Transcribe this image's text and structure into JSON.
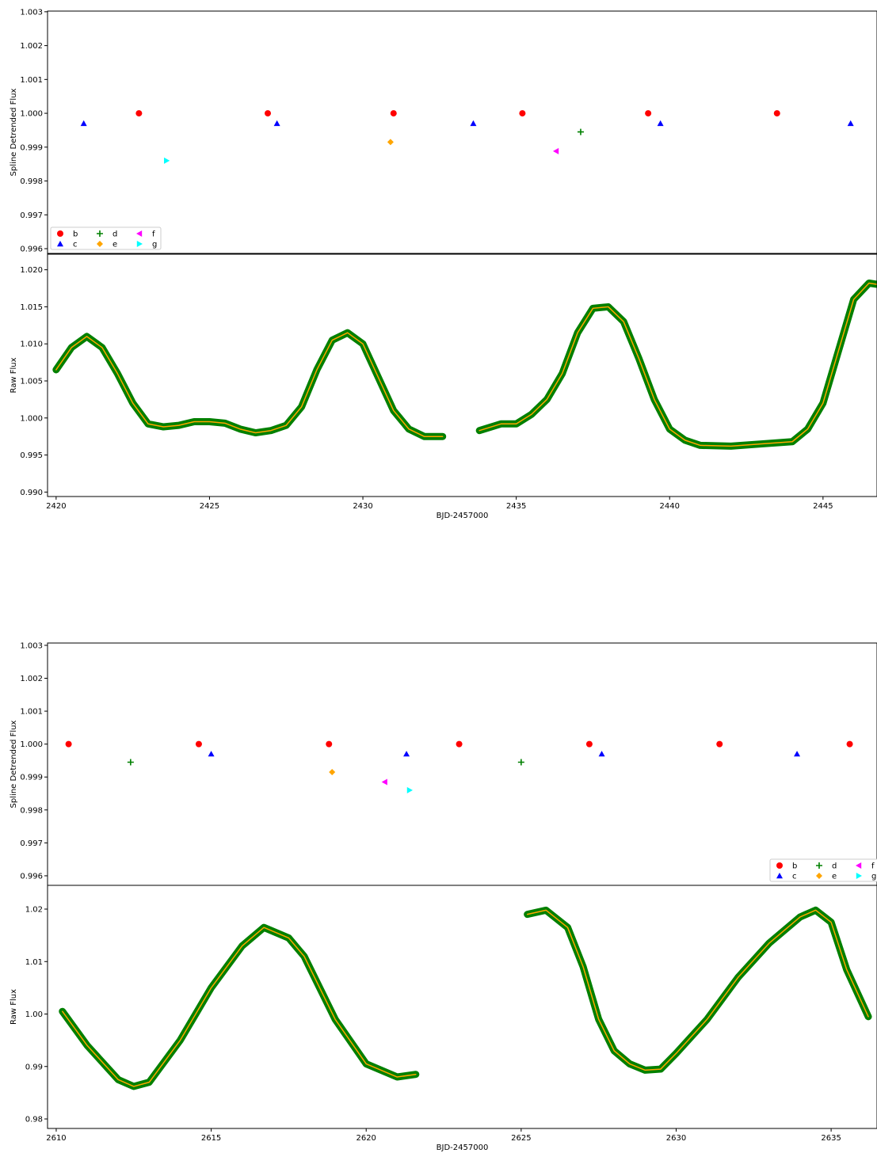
{
  "chart_data": [
    {
      "type": "scatter",
      "ylabel": "Spline Detrended Flux",
      "xlim": [
        2419.72,
        2446.76
      ],
      "ylim": [
        0.99586,
        1.00302
      ],
      "yticks": [
        {
          "value": 0.996,
          "label": "0.996"
        },
        {
          "value": 0.997,
          "label": "0.997"
        },
        {
          "value": 0.998,
          "label": "0.998"
        },
        {
          "value": 0.999,
          "label": "0.999"
        },
        {
          "value": 1.0,
          "label": "1.000"
        },
        {
          "value": 1.001,
          "label": "1.001"
        },
        {
          "value": 1.002,
          "label": "1.002"
        },
        {
          "value": 1.003,
          "label": "1.003"
        }
      ],
      "legend": "lower left",
      "series": [
        {
          "name": "b",
          "color": "#ff0000",
          "marker": "circle",
          "x": [
            2422.7,
            2426.9,
            2431.0,
            2435.2,
            2439.3,
            2443.5
          ],
          "values": [
            1.0,
            1.0,
            1.0,
            1.0,
            1.0,
            1.0
          ]
        },
        {
          "name": "c",
          "color": "#0000ff",
          "marker": "triangle-up",
          "x": [
            2420.9,
            2427.2,
            2433.6,
            2439.7,
            2445.9
          ],
          "values": [
            0.9997,
            0.9997,
            0.9997,
            0.9997,
            0.9997
          ]
        },
        {
          "name": "d",
          "color": "#008000",
          "marker": "plus",
          "x": [
            2437.1
          ],
          "values": [
            0.99945
          ]
        },
        {
          "name": "e",
          "color": "#ffa500",
          "marker": "diamond",
          "x": [
            2430.9
          ],
          "values": [
            0.99915
          ]
        },
        {
          "name": "f",
          "color": "#ff00ff",
          "marker": "triangle-left",
          "x": [
            2436.3
          ],
          "values": [
            0.99888
          ]
        },
        {
          "name": "g",
          "color": "#00ffff",
          "marker": "triangle-right",
          "x": [
            2423.6
          ],
          "values": [
            0.9986
          ]
        }
      ]
    },
    {
      "type": "line",
      "ylabel": "Raw Flux",
      "xlabel": "BJD-2457000",
      "xlim": [
        2419.72,
        2446.76
      ],
      "ylim": [
        0.9894,
        1.0221
      ],
      "xticks": [
        2420,
        2425,
        2430,
        2435,
        2440,
        2445
      ],
      "yticks": [
        {
          "value": 0.99,
          "label": "0.990"
        },
        {
          "value": 0.995,
          "label": "0.995"
        },
        {
          "value": 1.0,
          "label": "1.000"
        },
        {
          "value": 1.005,
          "label": "1.005"
        },
        {
          "value": 1.01,
          "label": "1.010"
        },
        {
          "value": 1.015,
          "label": "1.015"
        },
        {
          "value": 1.02,
          "label": "1.020"
        }
      ],
      "band_color": "#008000",
      "color": "#ffa500",
      "x": [
        2420.0,
        2420.5,
        2421.0,
        2421.5,
        2422.0,
        2422.5,
        2423.0,
        2423.5,
        2424.0,
        2424.5,
        2425.0,
        2425.5,
        2426.0,
        2426.5,
        2427.0,
        2427.5,
        2428.0,
        2428.5,
        2429.0,
        2429.5,
        2430.0,
        2430.5,
        2431.0,
        2431.5,
        2432.0,
        2432.6,
        2433.2,
        2433.8,
        2434.5,
        2435.0,
        2435.5,
        2436.0,
        2436.5,
        2437.0,
        2437.5,
        2438.0,
        2438.5,
        2439.0,
        2439.5,
        2440.0,
        2440.5,
        2441.0,
        2442.0,
        2443.0,
        2444.0,
        2444.5,
        2445.0,
        2445.5,
        2446.0,
        2446.5,
        2446.8
      ],
      "values": [
        1.0065,
        1.0095,
        1.011,
        1.0095,
        1.006,
        1.002,
        0.9992,
        0.9988,
        0.999,
        0.9995,
        0.9995,
        0.9993,
        0.9985,
        0.998,
        0.9983,
        0.999,
        1.0015,
        1.0065,
        1.0105,
        1.0115,
        1.01,
        1.0055,
        1.001,
        0.9985,
        0.9975,
        0.9975,
        null,
        0.9983,
        0.9992,
        0.9992,
        1.0005,
        1.0025,
        1.006,
        1.0115,
        1.0148,
        1.015,
        1.013,
        1.008,
        1.0025,
        0.9985,
        0.997,
        0.9963,
        0.9962,
        0.9965,
        0.9968,
        0.9985,
        1.002,
        1.009,
        1.016,
        1.0182,
        1.018
      ]
    },
    {
      "type": "scatter",
      "ylabel": "Spline Detrended Flux",
      "xlim": [
        2609.72,
        2636.48
      ],
      "ylim": [
        0.99571,
        1.00307
      ],
      "yticks": [
        {
          "value": 0.996,
          "label": "0.996"
        },
        {
          "value": 0.997,
          "label": "0.997"
        },
        {
          "value": 0.998,
          "label": "0.998"
        },
        {
          "value": 0.999,
          "label": "0.999"
        },
        {
          "value": 1.0,
          "label": "1.000"
        },
        {
          "value": 1.001,
          "label": "1.001"
        },
        {
          "value": 1.002,
          "label": "1.002"
        },
        {
          "value": 1.003,
          "label": "1.003"
        }
      ],
      "legend": "lower right",
      "series": [
        {
          "name": "b",
          "color": "#ff0000",
          "marker": "circle",
          "x": [
            2610.4,
            2614.6,
            2618.8,
            2623.0,
            2627.2,
            2631.4,
            2635.6
          ],
          "values": [
            1.0,
            1.0,
            1.0,
            1.0,
            1.0,
            1.0,
            1.0
          ]
        },
        {
          "name": "c",
          "color": "#0000ff",
          "marker": "triangle-up",
          "x": [
            2615.0,
            2621.3,
            2627.6,
            2633.9
          ],
          "values": [
            0.9997,
            0.9997,
            0.9997,
            0.9997
          ]
        },
        {
          "name": "d",
          "color": "#008000",
          "marker": "plus",
          "x": [
            2612.4,
            2625.0
          ],
          "values": [
            0.99945,
            0.99945
          ]
        },
        {
          "name": "e",
          "color": "#ffa500",
          "marker": "diamond",
          "x": [
            2618.9
          ],
          "values": [
            0.99915
          ]
        },
        {
          "name": "f",
          "color": "#ff00ff",
          "marker": "triangle-left",
          "x": [
            2620.6
          ],
          "values": [
            0.99885
          ]
        },
        {
          "name": "g",
          "color": "#00ffff",
          "marker": "triangle-right",
          "x": [
            2621.4
          ],
          "values": [
            0.9986
          ]
        }
      ]
    },
    {
      "type": "line",
      "ylabel": "Raw Flux",
      "xlabel": "BJD-2457000",
      "xlim": [
        2609.72,
        2636.48
      ],
      "ylim": [
        0.97819,
        1.02453
      ],
      "xticks": [
        2610,
        2615,
        2620,
        2625,
        2630,
        2635
      ],
      "yticks": [
        0.98,
        0.99,
        {
          "value": 1.0,
          "label": "1.00"
        },
        1.01,
        1.02
      ],
      "band_color": "#008000",
      "color": "#ffa500",
      "x": [
        2610.2,
        2611.0,
        2612.0,
        2612.5,
        2613.0,
        2614.0,
        2615.0,
        2616.0,
        2616.7,
        2617.5,
        2618.0,
        2619.0,
        2620.0,
        2621.0,
        2621.6,
        2623.0,
        2625.2,
        2625.8,
        2626.5,
        2627.0,
        2627.5,
        2628.0,
        2628.5,
        2629.0,
        2629.5,
        2630.0,
        2631.0,
        2632.0,
        2633.0,
        2634.0,
        2634.5,
        2635.0,
        2635.5,
        2636.2
      ],
      "values": [
        1.0005,
        0.994,
        0.9875,
        0.9862,
        0.987,
        0.995,
        1.005,
        1.013,
        1.0165,
        1.0145,
        1.011,
        0.999,
        0.9905,
        0.988,
        0.9885,
        null,
        1.019,
        1.0198,
        1.0165,
        1.009,
        0.999,
        0.993,
        0.9905,
        0.9893,
        0.9895,
        0.9925,
        0.999,
        1.007,
        1.0135,
        1.0185,
        1.0198,
        1.0175,
        1.0085,
        0.9995
      ]
    }
  ]
}
